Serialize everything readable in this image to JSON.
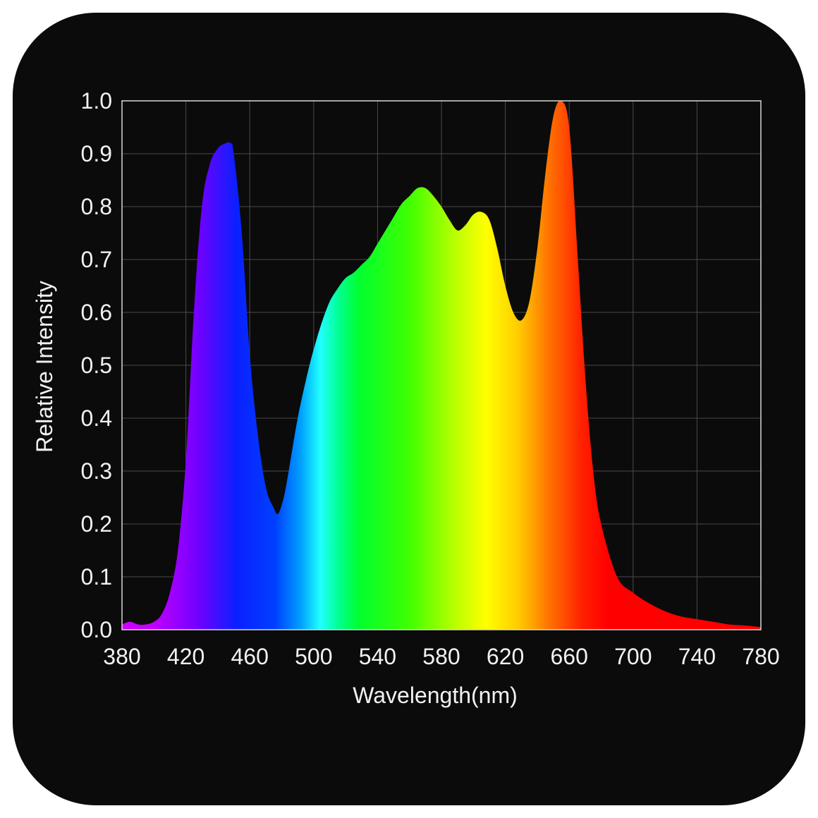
{
  "chart_data": {
    "type": "area",
    "title": "",
    "xlabel": "Wavelength(nm)",
    "ylabel": "Relative Intensity",
    "xlim": [
      380,
      780
    ],
    "ylim": [
      0,
      1.0
    ],
    "grid": true,
    "x_ticks": [
      "380",
      "420",
      "460",
      "500",
      "540",
      "580",
      "620",
      "660",
      "700",
      "740",
      "780"
    ],
    "y_ticks": [
      "0.0",
      "0.1",
      "0.2",
      "0.3",
      "0.4",
      "0.5",
      "0.6",
      "0.7",
      "0.8",
      "0.9",
      "1.0"
    ],
    "x": [
      380,
      385,
      390,
      395,
      400,
      405,
      410,
      415,
      420,
      425,
      430,
      435,
      440,
      445,
      448,
      450,
      455,
      460,
      465,
      470,
      475,
      478,
      482,
      486,
      490,
      495,
      500,
      505,
      510,
      515,
      520,
      525,
      530,
      535,
      540,
      545,
      550,
      555,
      560,
      565,
      570,
      575,
      580,
      585,
      590,
      595,
      600,
      605,
      610,
      615,
      620,
      625,
      630,
      635,
      640,
      645,
      650,
      655,
      660,
      665,
      670,
      675,
      680,
      690,
      700,
      710,
      720,
      730,
      740,
      750,
      760,
      770,
      780
    ],
    "values": [
      0.01,
      0.015,
      0.01,
      0.01,
      0.015,
      0.03,
      0.07,
      0.15,
      0.32,
      0.6,
      0.8,
      0.88,
      0.91,
      0.92,
      0.92,
      0.9,
      0.75,
      0.52,
      0.37,
      0.27,
      0.23,
      0.22,
      0.26,
      0.33,
      0.4,
      0.47,
      0.53,
      0.58,
      0.62,
      0.645,
      0.665,
      0.675,
      0.69,
      0.705,
      0.73,
      0.755,
      0.78,
      0.805,
      0.82,
      0.835,
      0.835,
      0.82,
      0.8,
      0.775,
      0.755,
      0.765,
      0.785,
      0.79,
      0.775,
      0.72,
      0.65,
      0.6,
      0.585,
      0.62,
      0.72,
      0.86,
      0.97,
      1.0,
      0.95,
      0.72,
      0.48,
      0.3,
      0.2,
      0.1,
      0.07,
      0.05,
      0.035,
      0.025,
      0.02,
      0.015,
      0.01,
      0.008,
      0.005
    ],
    "colors": {
      "background": "#0b0b0b",
      "grid": "#4a4a4a",
      "frame": "#d8d8d8",
      "text": "#f2f2f2"
    }
  }
}
